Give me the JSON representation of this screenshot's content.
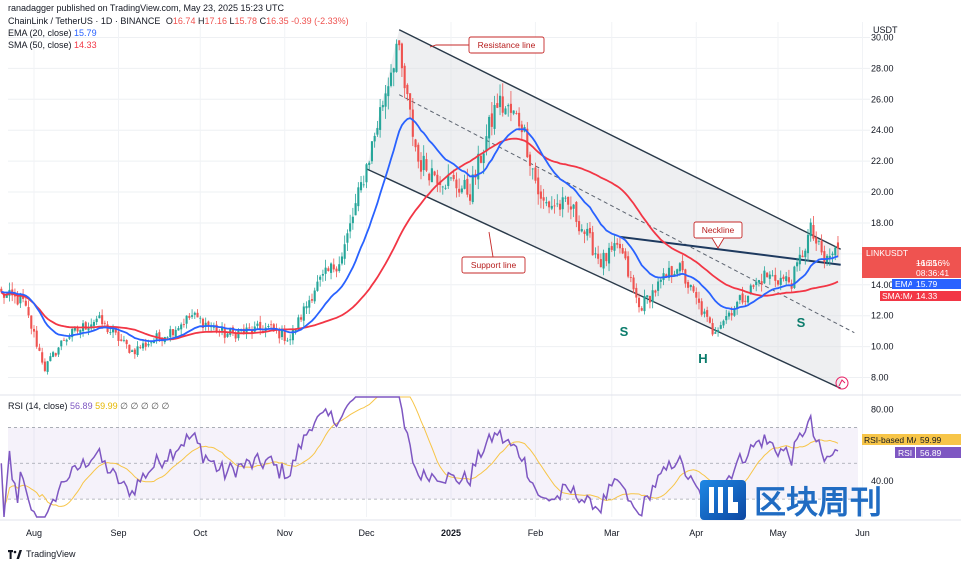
{
  "header": {
    "publisher": "ranadagger published on TradingView.com, May 23, 2025 15:23 UTC",
    "symbol_line": {
      "name": "ChainLink / TetherUS · 1D · BINANCE",
      "o_label": "O",
      "o": "16.74",
      "h_label": "H",
      "h": "17.16",
      "l_label": "L",
      "l": "15.78",
      "c_label": "C",
      "c": "16.35",
      "change": "-0.39 (-2.33%)"
    },
    "ema_label": "EMA (20, close)",
    "ema_value": "15.79",
    "sma_label": "SMA (50, close)",
    "sma_value": "14.33"
  },
  "rsi_legend": {
    "label": "RSI (14, close)",
    "value": "56.89",
    "ma_value": "59.99",
    "extra": "∅ ∅ ∅ ∅ ∅"
  },
  "price_scale": {
    "currency": "USDT"
  },
  "tags": {
    "symbol": "LINKUSDT",
    "price": "16.35",
    "change_pct": "+16.16%",
    "countdown": "08:36:41",
    "ema_tag": "EMA",
    "ema_val": "15.79",
    "sma_tag": "SMA:MA",
    "sma_val": "14.33",
    "rsi_ma_tag": "RSI-based MA",
    "rsi_ma_val": "59.99",
    "rsi_tag": "RSI",
    "rsi_val": "56.89"
  },
  "annotations": {
    "resistance": "Resistance line",
    "support": "Support line",
    "neckline": "Neckline",
    "left_shoulder": "S",
    "head": "H",
    "right_shoulder": "S"
  },
  "watermark": {
    "text": "区块周刊",
    "logo": "blockweekly-logo"
  },
  "footer": {
    "brand": "TradingView",
    "logo": "tradingview-logo"
  },
  "colors": {
    "up": "#26a69a",
    "down": "#ef5350",
    "ema": "#2962ff",
    "sma": "#f23645",
    "rsi": "#7e57c2",
    "rsi_ma": "#f7c548",
    "channel": "#2a3a4a",
    "neckline": "#1e3a5f",
    "annotation_text": "#b71c1c",
    "shoulder_text": "#0a7b6b",
    "watermark": "#1565c0"
  },
  "chart_data": [
    {
      "type": "candlestick",
      "title": "ChainLink / TetherUS · 1D · BINANCE",
      "x_axis": {
        "tick_labels": [
          "Aug",
          "Sep",
          "Oct",
          "Nov",
          "Dec",
          "2025",
          "Feb",
          "Mar",
          "Apr",
          "May",
          "Jun"
        ]
      },
      "y_axis": {
        "label": "USDT",
        "tick_labels": [
          "8.00",
          "10.00",
          "12.00",
          "14.00",
          "16.00",
          "18.00",
          "20.00",
          "22.00",
          "24.00",
          "26.00",
          "28.00",
          "30.00"
        ],
        "range": [
          7.0,
          31.0
        ],
        "scale": "linear"
      },
      "grid": true,
      "price_path_close": [
        {
          "date": "2024-07-20",
          "value": 13.4
        },
        {
          "date": "2024-07-28",
          "value": 12.9
        },
        {
          "date": "2024-08-05",
          "value": 8.6
        },
        {
          "date": "2024-08-12",
          "value": 10.5
        },
        {
          "date": "2024-08-24",
          "value": 11.8
        },
        {
          "date": "2024-09-06",
          "value": 9.7
        },
        {
          "date": "2024-09-20",
          "value": 11.0
        },
        {
          "date": "2024-09-28",
          "value": 12.0
        },
        {
          "date": "2024-10-10",
          "value": 10.8
        },
        {
          "date": "2024-10-26",
          "value": 11.2
        },
        {
          "date": "2024-11-03",
          "value": 10.5
        },
        {
          "date": "2024-11-12",
          "value": 13.8
        },
        {
          "date": "2024-11-22",
          "value": 15.8
        },
        {
          "date": "2024-12-03",
          "value": 23.0
        },
        {
          "date": "2024-12-12",
          "value": 29.5
        },
        {
          "date": "2024-12-20",
          "value": 22.0
        },
        {
          "date": "2024-12-28",
          "value": 21.0
        },
        {
          "date": "2025-01-08",
          "value": 20.0
        },
        {
          "date": "2025-01-18",
          "value": 25.8
        },
        {
          "date": "2025-01-27",
          "value": 24.5
        },
        {
          "date": "2025-02-03",
          "value": 19.3
        },
        {
          "date": "2025-02-14",
          "value": 19.0
        },
        {
          "date": "2025-02-25",
          "value": 15.5
        },
        {
          "date": "2025-03-04",
          "value": 16.4
        },
        {
          "date": "2025-03-11",
          "value": 12.5
        },
        {
          "date": "2025-03-25",
          "value": 15.3
        },
        {
          "date": "2025-04-07",
          "value": 11.0
        },
        {
          "date": "2025-04-15",
          "value": 12.6
        },
        {
          "date": "2025-04-26",
          "value": 14.6
        },
        {
          "date": "2025-05-06",
          "value": 14.2
        },
        {
          "date": "2025-05-13",
          "value": 17.5
        },
        {
          "date": "2025-05-18",
          "value": 15.5
        },
        {
          "date": "2025-05-23",
          "value": 16.35
        }
      ],
      "series": [
        {
          "name": "EMA (20, close)",
          "last": 15.79
        },
        {
          "name": "SMA (50, close)",
          "last": 14.33
        }
      ],
      "last": {
        "open": 16.74,
        "high": 17.16,
        "low": 15.78,
        "close": 16.35,
        "change": -0.39,
        "change_pct": -2.33
      },
      "channel": {
        "resistance": [
          {
            "date": "2024-12-13",
            "value": 30.5
          },
          {
            "date": "2025-05-24",
            "value": 16.3
          }
        ],
        "support": [
          {
            "date": "2024-12-01",
            "value": 21.5
          },
          {
            "date": "2025-05-24",
            "value": 7.3
          }
        ],
        "midline": [
          {
            "date": "2024-12-13",
            "value": 26.3
          },
          {
            "date": "2025-05-29",
            "value": 10.9
          }
        ],
        "neckline": [
          {
            "date": "2025-03-04",
            "value": 17.1
          },
          {
            "date": "2025-05-24",
            "value": 15.3
          }
        ]
      }
    },
    {
      "type": "line",
      "title": "RSI (14, close)",
      "y_axis": {
        "tick_labels": [
          "40.00",
          "80.00"
        ],
        "range": [
          20,
          87
        ]
      },
      "bands": [
        30,
        70
      ],
      "series": [
        {
          "name": "RSI",
          "last": 56.89
        },
        {
          "name": "RSI-based MA",
          "last": 59.99
        }
      ]
    }
  ]
}
